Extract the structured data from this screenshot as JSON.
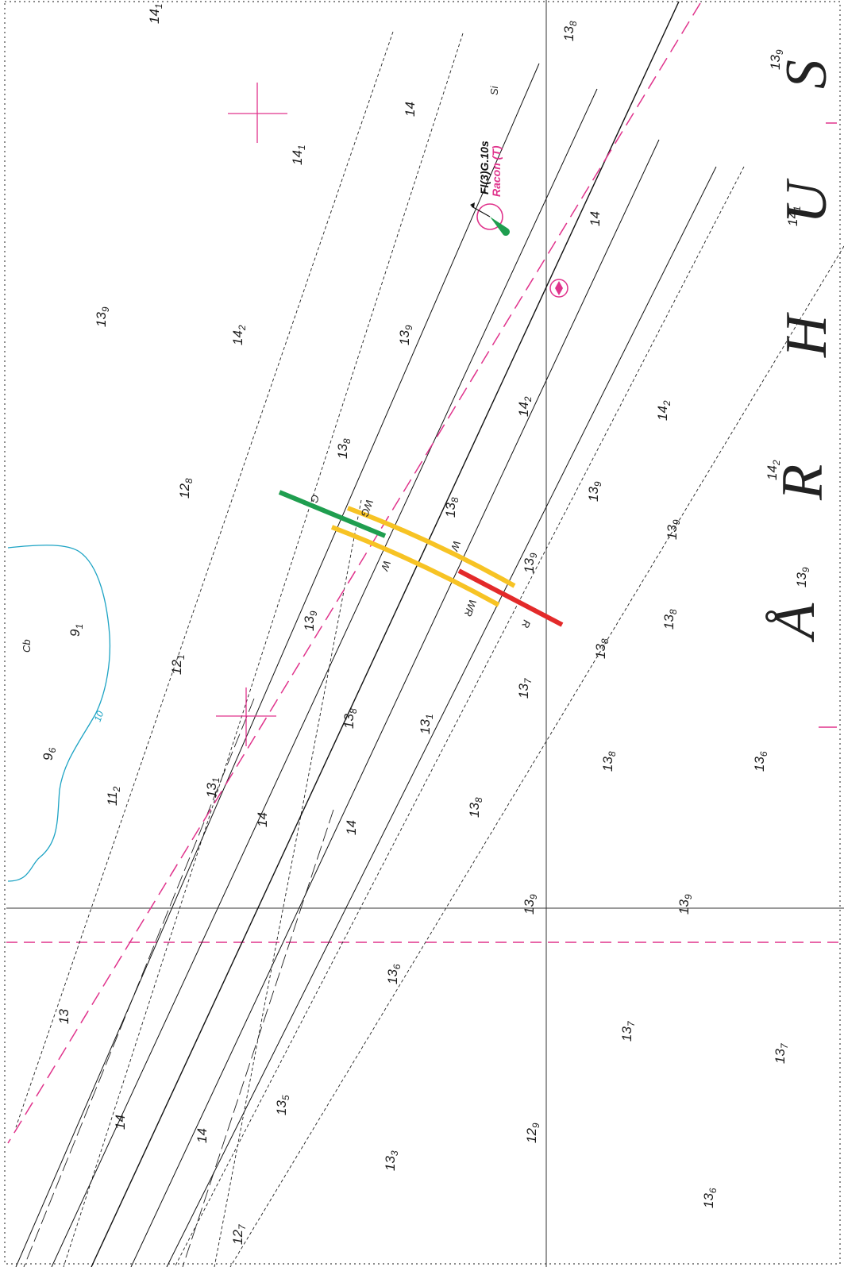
{
  "chart_title_letters": [
    "Å",
    "R",
    "H",
    "U",
    "S"
  ],
  "colors": {
    "depth_line": "#222222",
    "magenta": "#e0338c",
    "contour": "#1ca3c4",
    "sector_green": "#1f9e4f",
    "sector_yellow": "#f7c324",
    "sector_red": "#e32a2a"
  },
  "light": {
    "characteristic": "Fl(3)G.10s",
    "racon": "Racon (T)",
    "icon": "light-buoy-icon"
  },
  "sector_labels": [
    "G",
    "WG",
    "W",
    "W",
    "WR",
    "R"
  ],
  "misc_labels": {
    "si": "Si",
    "cb": "Cb",
    "contour_10": "10"
  },
  "soundings": [
    {
      "m": "14",
      "s": "1"
    },
    {
      "m": "13",
      "s": "8"
    },
    {
      "m": "13",
      "s": "9"
    },
    {
      "m": "14",
      "s": ""
    },
    {
      "m": "14",
      "s": "1"
    },
    {
      "m": "13",
      "s": "9"
    },
    {
      "m": "14",
      "s": ""
    },
    {
      "m": "14",
      "s": "1"
    },
    {
      "m": "14",
      "s": "2"
    },
    {
      "m": "13",
      "s": "9"
    },
    {
      "m": "14",
      "s": "2"
    },
    {
      "m": "14",
      "s": "2"
    },
    {
      "m": "13",
      "s": "8"
    },
    {
      "m": "12",
      "s": "8"
    },
    {
      "m": "13",
      "s": "9"
    },
    {
      "m": "14",
      "s": "2"
    },
    {
      "m": "13",
      "s": "8"
    },
    {
      "m": "13",
      "s": "9"
    },
    {
      "m": "13",
      "s": "9"
    },
    {
      "m": "13",
      "s": "9"
    },
    {
      "m": "13",
      "s": "9"
    },
    {
      "m": "9",
      "s": "1"
    },
    {
      "m": "12",
      "s": "1"
    },
    {
      "m": "13",
      "s": "8"
    },
    {
      "m": "13",
      "s": "8"
    },
    {
      "m": "13",
      "s": "7"
    },
    {
      "m": "9",
      "s": "6"
    },
    {
      "m": "13",
      "s": "8"
    },
    {
      "m": "13",
      "s": "1"
    },
    {
      "m": "13",
      "s": "1"
    },
    {
      "m": "13",
      "s": "8"
    },
    {
      "m": "13",
      "s": "6"
    },
    {
      "m": "11",
      "s": "2"
    },
    {
      "m": "14",
      "s": ""
    },
    {
      "m": "14",
      "s": ""
    },
    {
      "m": "13",
      "s": "8"
    },
    {
      "m": "13",
      "s": "9"
    },
    {
      "m": "13",
      "s": "9"
    },
    {
      "m": "13",
      "s": "6"
    },
    {
      "m": "13",
      "s": ""
    },
    {
      "m": "13",
      "s": "7"
    },
    {
      "m": "13",
      "s": "7"
    },
    {
      "m": "13",
      "s": "5"
    },
    {
      "m": "14",
      "s": ""
    },
    {
      "m": "14",
      "s": ""
    },
    {
      "m": "12",
      "s": "9"
    },
    {
      "m": "13",
      "s": "3"
    },
    {
      "m": "13",
      "s": "6"
    },
    {
      "m": "12",
      "s": "7"
    }
  ]
}
